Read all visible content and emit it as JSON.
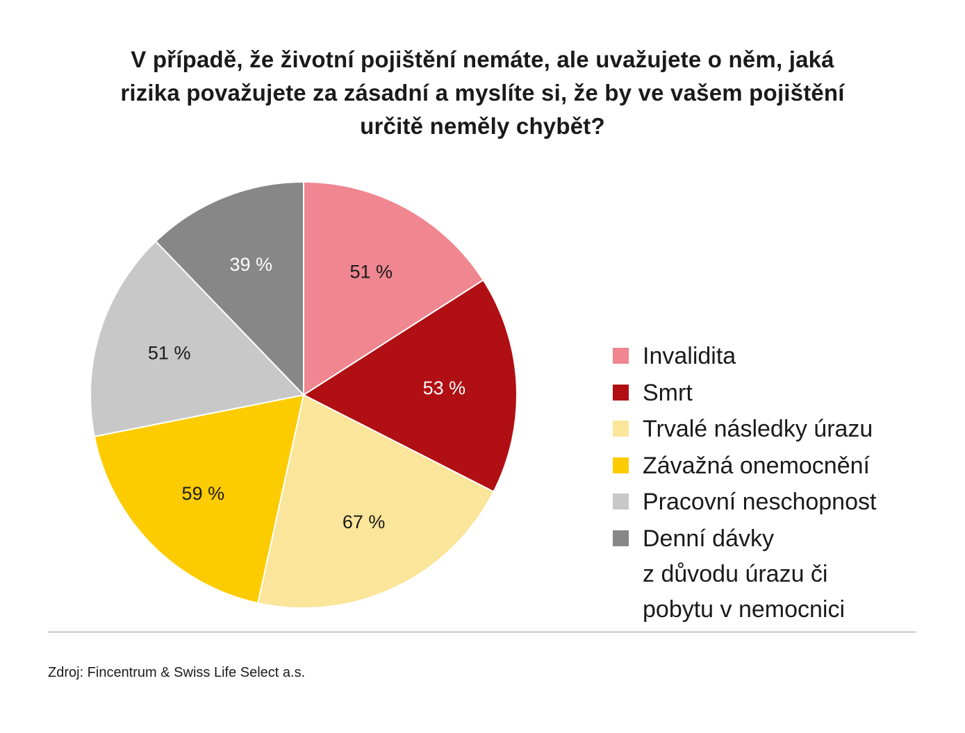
{
  "title_lines": [
    "V případě, že životní pojištění nemáte, ale uvažujete o něm, jaká",
    "rizika považujete za zásadní a myslíte si, že by ve vašem pojištění",
    "určitě neměly chybět?"
  ],
  "chart_data": {
    "type": "pie",
    "title": "V případě, že životní pojištění nemáte, ale uvažujete o něm, jaká rizika považujete za zásadní a myslíte si, že by ve vašem pojištění určitě neměly chybět?",
    "slices": [
      {
        "label": "Invalidita",
        "value": 51,
        "display": "51 %",
        "color": "#ef8690",
        "text_color": "#1a1a1a"
      },
      {
        "label": "Smrt",
        "value": 53,
        "display": "53 %",
        "color": "#b00f13",
        "text_color": "#ffffff"
      },
      {
        "label": "Trvalé následky úrazu",
        "value": 67,
        "display": "67 %",
        "color": "#fbe59a",
        "text_color": "#1a1a1a"
      },
      {
        "label": "Závažná onemocnění",
        "value": 59,
        "display": "59 %",
        "color": "#fccc00",
        "text_color": "#1a1a1a"
      },
      {
        "label": "Pracovní neschopnost",
        "value": 51,
        "display": "51 %",
        "color": "#c8c8c8",
        "text_color": "#1a1a1a"
      },
      {
        "label": "Denní dávky z důvodu úrazu či pobytu v nemocnici",
        "value": 39,
        "display": "39 %",
        "color": "#878787",
        "text_color": "#ffffff"
      }
    ],
    "legend_position": "right"
  },
  "legend": {
    "items": [
      {
        "lines": [
          "Invalidita"
        ],
        "color": "#ef8690"
      },
      {
        "lines": [
          "Smrt"
        ],
        "color": "#b00f13"
      },
      {
        "lines": [
          "Trvalé následky úrazu"
        ],
        "color": "#fbe59a"
      },
      {
        "lines": [
          "Závažná onemocnění"
        ],
        "color": "#fccc00"
      },
      {
        "lines": [
          "Pracovní neschopnost"
        ],
        "color": "#c8c8c8"
      },
      {
        "lines": [
          "Denní dávky",
          "z důvodu úrazu či",
          "pobytu v nemocnici"
        ],
        "color": "#878787"
      }
    ]
  },
  "source": "Zdroj: Fincentrum & Swiss Life Select a.s."
}
